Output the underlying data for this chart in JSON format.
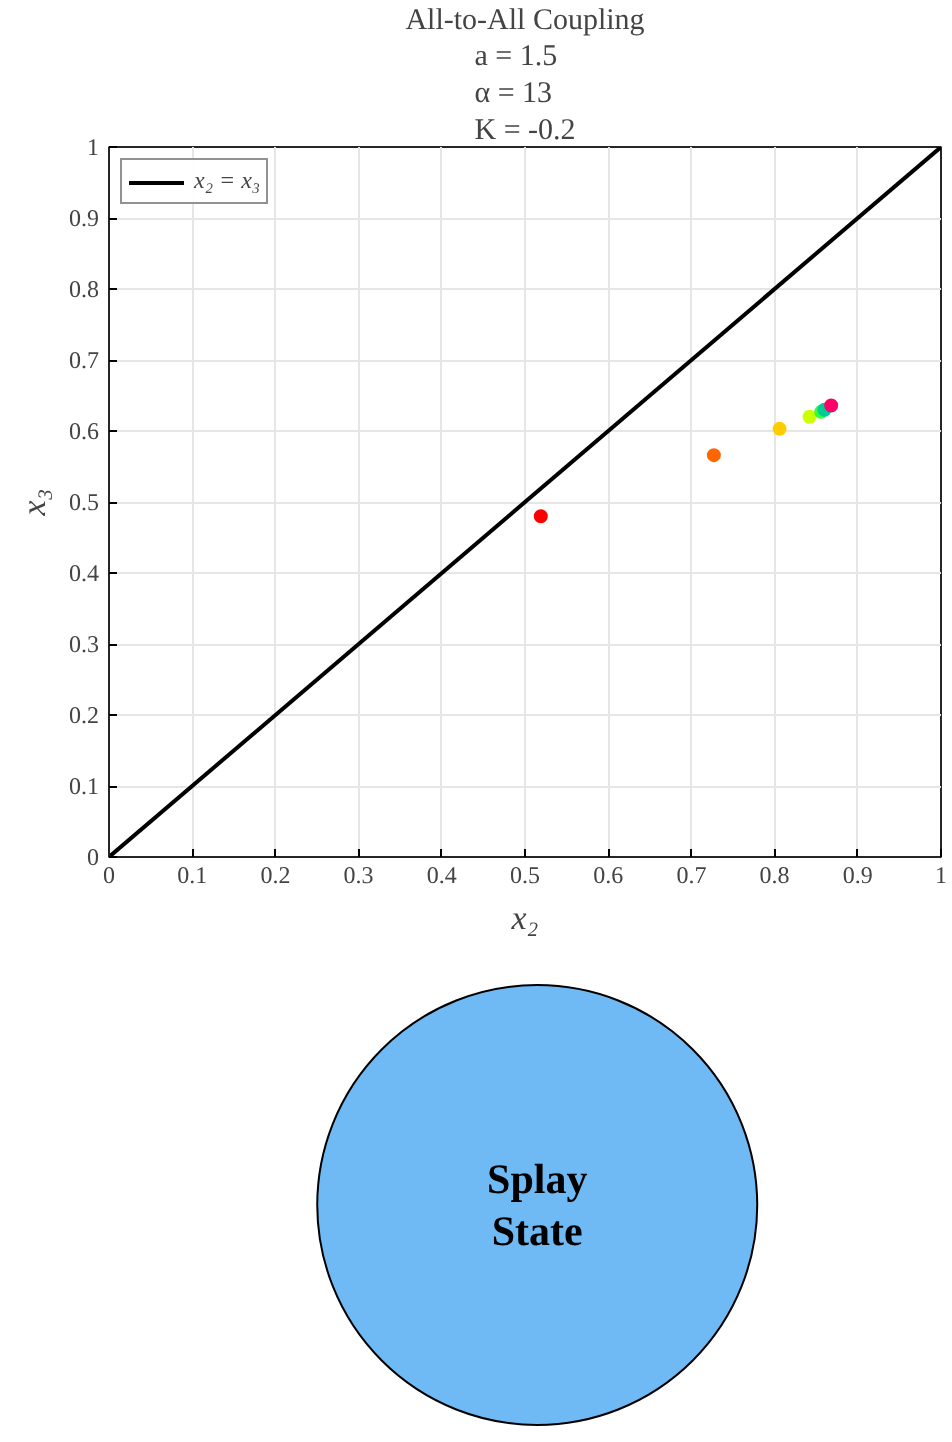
{
  "chart_data": {
    "type": "scatter",
    "title": "All-to-All Coupling",
    "subtitle": "a = 1.5\nα = 13\nK = -0.2",
    "xlabel": "x₂",
    "ylabel": "x₃",
    "x": [
      0.519,
      0.727,
      0.806,
      0.842,
      0.856,
      0.86,
      0.868
    ],
    "values": [
      0.48,
      0.566,
      0.603,
      0.62,
      0.627,
      0.63,
      0.636
    ],
    "colors": [
      "#ff0000",
      "#ff6600",
      "#ffcc00",
      "#ccff00",
      "#33ff33",
      "#00cc99",
      "#ff0066"
    ],
    "series": [
      {
        "type": "line",
        "name": "x₂ = x₃",
        "color": "#000000",
        "marker": "none",
        "x": [
          0,
          1
        ],
        "values": [
          0,
          1
        ]
      }
    ],
    "marker": "circle",
    "xlim": [
      0,
      1
    ],
    "ylim": [
      0,
      1
    ],
    "xticks": [
      0,
      0.1,
      0.2,
      0.3,
      0.4,
      0.5,
      0.6,
      0.7,
      0.8,
      0.9,
      1
    ],
    "yticks": [
      0,
      0.1,
      0.2,
      0.3,
      0.4,
      0.5,
      0.6,
      0.7,
      0.8,
      0.9,
      1
    ],
    "grid": true,
    "legend": "top left",
    "annotations": [
      "Splay State"
    ]
  }
}
